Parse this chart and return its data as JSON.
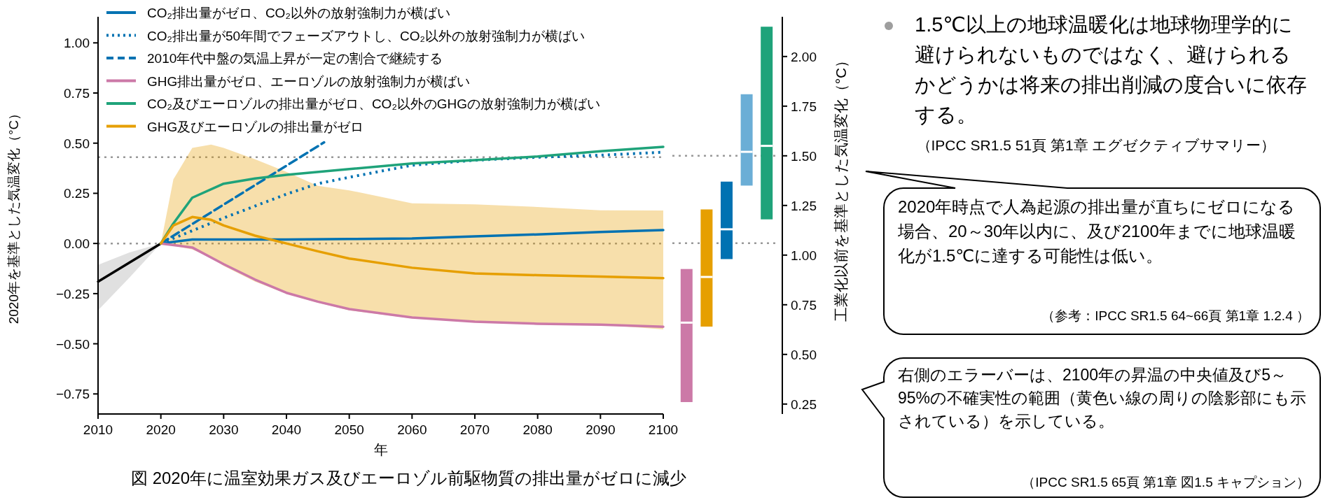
{
  "chart_data": [
    {
      "type": "line",
      "xlabel": "年",
      "ylabel": "2020年を基準とした気温変化（°C）",
      "xlim": [
        2010,
        2100
      ],
      "xticks": [
        2010,
        2020,
        2030,
        2040,
        2050,
        2060,
        2070,
        2080,
        2090,
        2100
      ],
      "ylim": [
        -0.85,
        1.13
      ],
      "yticks": [
        {
          "value": -0.75,
          "label": "−0.75"
        },
        {
          "value": -0.5,
          "label": "−0.50"
        },
        {
          "value": -0.25,
          "label": "−0.25"
        },
        {
          "value": 0,
          "label": "0.00"
        },
        {
          "value": 0.25,
          "label": "0.25"
        },
        {
          "value": 0.5,
          "label": "0.50"
        },
        {
          "value": 0.75,
          "label": "0.75"
        },
        {
          "value": 1,
          "label": "1.00"
        }
      ],
      "grid": false,
      "legend": "top left",
      "ref_lines": [
        {
          "axis": "y",
          "value": 0,
          "color": "#999999",
          "line_style": "dotted"
        },
        {
          "axis": "y",
          "value": 0.43,
          "color": "#999999",
          "line_style": "dotted"
        }
      ],
      "annotations": [
        "図 2020年に温室効果ガス及びエーロゾル前駆物質の排出量がゼロに減少"
      ],
      "series": [
        {
          "color": "#000000",
          "line_style": "solid",
          "x": [
            2010,
            2015,
            2020
          ],
          "values": [
            -0.19,
            -0.095,
            0
          ],
          "lower": [
            -0.333,
            -0.17,
            0
          ],
          "upper": [
            -0.107,
            -0.045,
            0
          ]
        },
        {
          "name": "CO₂排出量がゼロ、CO₂以外の放射強制力が横ばい",
          "color": "#0072b2",
          "line_style": "solid",
          "x": [
            2020,
            2025,
            2030,
            2040,
            2050,
            2060,
            2070,
            2080,
            2090,
            2100
          ],
          "values": [
            0,
            0.02,
            0.02,
            0.02,
            0.022,
            0.025,
            0.035,
            0.045,
            0.057,
            0.067
          ]
        },
        {
          "name": "CO₂排出量が50年間でフェーズアウトし、CO₂以外の放射強制力が横ばい",
          "color": "#0072b2",
          "line_style": "dotted",
          "x": [
            2020,
            2030,
            2040,
            2045,
            2050,
            2060,
            2070,
            2080,
            2090,
            2100
          ],
          "values": [
            0,
            0.127,
            0.246,
            0.298,
            0.33,
            0.39,
            0.415,
            0.43,
            0.44,
            0.455
          ]
        },
        {
          "name": "2010年代中盤の気温上昇が一定の割合で継続する",
          "color": "#0072b2",
          "line_style": "dashed",
          "x": [
            2020,
            2046
          ],
          "values": [
            0,
            0.504
          ]
        },
        {
          "name": "GHG排出量がゼロ、エーロゾルの放射強制力が横ばい",
          "color": "#cc79a7",
          "line_style": "solid",
          "x": [
            2020,
            2025,
            2030,
            2035,
            2040,
            2045,
            2050,
            2060,
            2070,
            2080,
            2090,
            2100
          ],
          "values": [
            0,
            -0.02,
            -0.103,
            -0.18,
            -0.246,
            -0.29,
            -0.327,
            -0.369,
            -0.39,
            -0.4,
            -0.405,
            -0.415
          ]
        },
        {
          "name": "CO₂及びエーロゾルの排出量がゼロ、CO₂以外のGHGの放射強制力が横ばい",
          "color": "#1fa37a",
          "line_style": "solid",
          "x": [
            2020,
            2022,
            2025,
            2030,
            2035,
            2040,
            2050,
            2060,
            2070,
            2080,
            2090,
            2100
          ],
          "values": [
            0,
            0.1,
            0.228,
            0.298,
            0.324,
            0.342,
            0.371,
            0.399,
            0.415,
            0.434,
            0.46,
            0.482
          ]
        },
        {
          "name": "GHG及びエーロゾルの排出量がゼロ",
          "color": "#e69f00",
          "line_style": "solid",
          "x": [
            2020,
            2022,
            2025,
            2028,
            2030,
            2035,
            2040,
            2045,
            2050,
            2060,
            2070,
            2080,
            2090,
            2100
          ],
          "values": [
            0,
            0.09,
            0.132,
            0.118,
            0.09,
            0.039,
            0,
            -0.039,
            -0.075,
            -0.121,
            -0.149,
            -0.158,
            -0.165,
            -0.173
          ],
          "lower": [
            0,
            -0.01,
            -0.03,
            -0.07,
            -0.112,
            -0.19,
            -0.25,
            -0.295,
            -0.333,
            -0.373,
            -0.39,
            -0.4,
            -0.405,
            -0.428
          ],
          "upper": [
            0,
            0.32,
            0.476,
            0.493,
            0.476,
            0.42,
            0.357,
            0.287,
            0.265,
            0.2,
            0.195,
            0.182,
            0.165,
            0.164
          ]
        }
      ]
    },
    {
      "type": "box",
      "categories": [
        null,
        null,
        null,
        null,
        null
      ],
      "ylabel": "工業化以前を基準とした気温変化（°C）",
      "ylim": [
        0.2,
        2.2
      ],
      "yticks": [
        0.25,
        {
          "value": 0.5,
          "label": "0.50"
        },
        0.75,
        {
          "value": 1,
          "label": "1.00"
        },
        1.25,
        {
          "value": 1.5,
          "label": "1.50"
        },
        1.75,
        {
          "value": 2,
          "label": "2.00"
        }
      ],
      "tick_labels": "y",
      "ref_lines": [
        {
          "axis": "y",
          "value": 1.06,
          "color": "#999999",
          "line_style": "dotted"
        },
        {
          "axis": "y",
          "value": 1.5,
          "color": "#999999",
          "line_style": "dotted"
        }
      ],
      "colors": [
        "#cc79a7",
        "#e69f00",
        "#0072b2",
        "#6baed6",
        "#1fa37a"
      ],
      "boxes": [
        {
          "low": 0.26,
          "q1": 0.26,
          "median": 0.66,
          "q3": 0.93,
          "high": 0.93
        },
        {
          "low": 0.64,
          "q1": 0.64,
          "median": 0.89,
          "q3": 1.23,
          "high": 1.23
        },
        {
          "low": 0.98,
          "q1": 0.98,
          "median": 1.13,
          "q3": 1.37,
          "high": 1.37
        },
        {
          "low": 1.35,
          "q1": 1.35,
          "median": 1.52,
          "q3": 1.81,
          "high": 1.81
        },
        {
          "low": 1.18,
          "q1": 1.18,
          "median": 1.55,
          "q3": 2.15,
          "high": 2.15
        }
      ]
    },
    {
      "type": "other",
      "annotations": [
        "1.5℃以上の地球温暖化は地球物理学的に避けられないものではなく、避けられるかどうかは将来の排出削減の度合いに依存する。",
        "（IPCC SR1.5 51頁 第1章 エグゼクティブサマリー）",
        "2020年時点で人為起源の排出量が直ちにゼロになる場合、20～30年以内に、及び2100年までに地球温暖化が1.5℃に達する可能性は低い。",
        "（参考：IPCC SR1.5 64~66頁 第1章 1.2.4 ）",
        "右側のエラーバーは、2100年の昇温の中央値及び5～95%の不確実性の範囲（黄色い線の周りの陰影部にも示されている）を示している。",
        "（IPCC SR1.5 65頁 第1章 図1.5 キャプション）"
      ]
    }
  ]
}
